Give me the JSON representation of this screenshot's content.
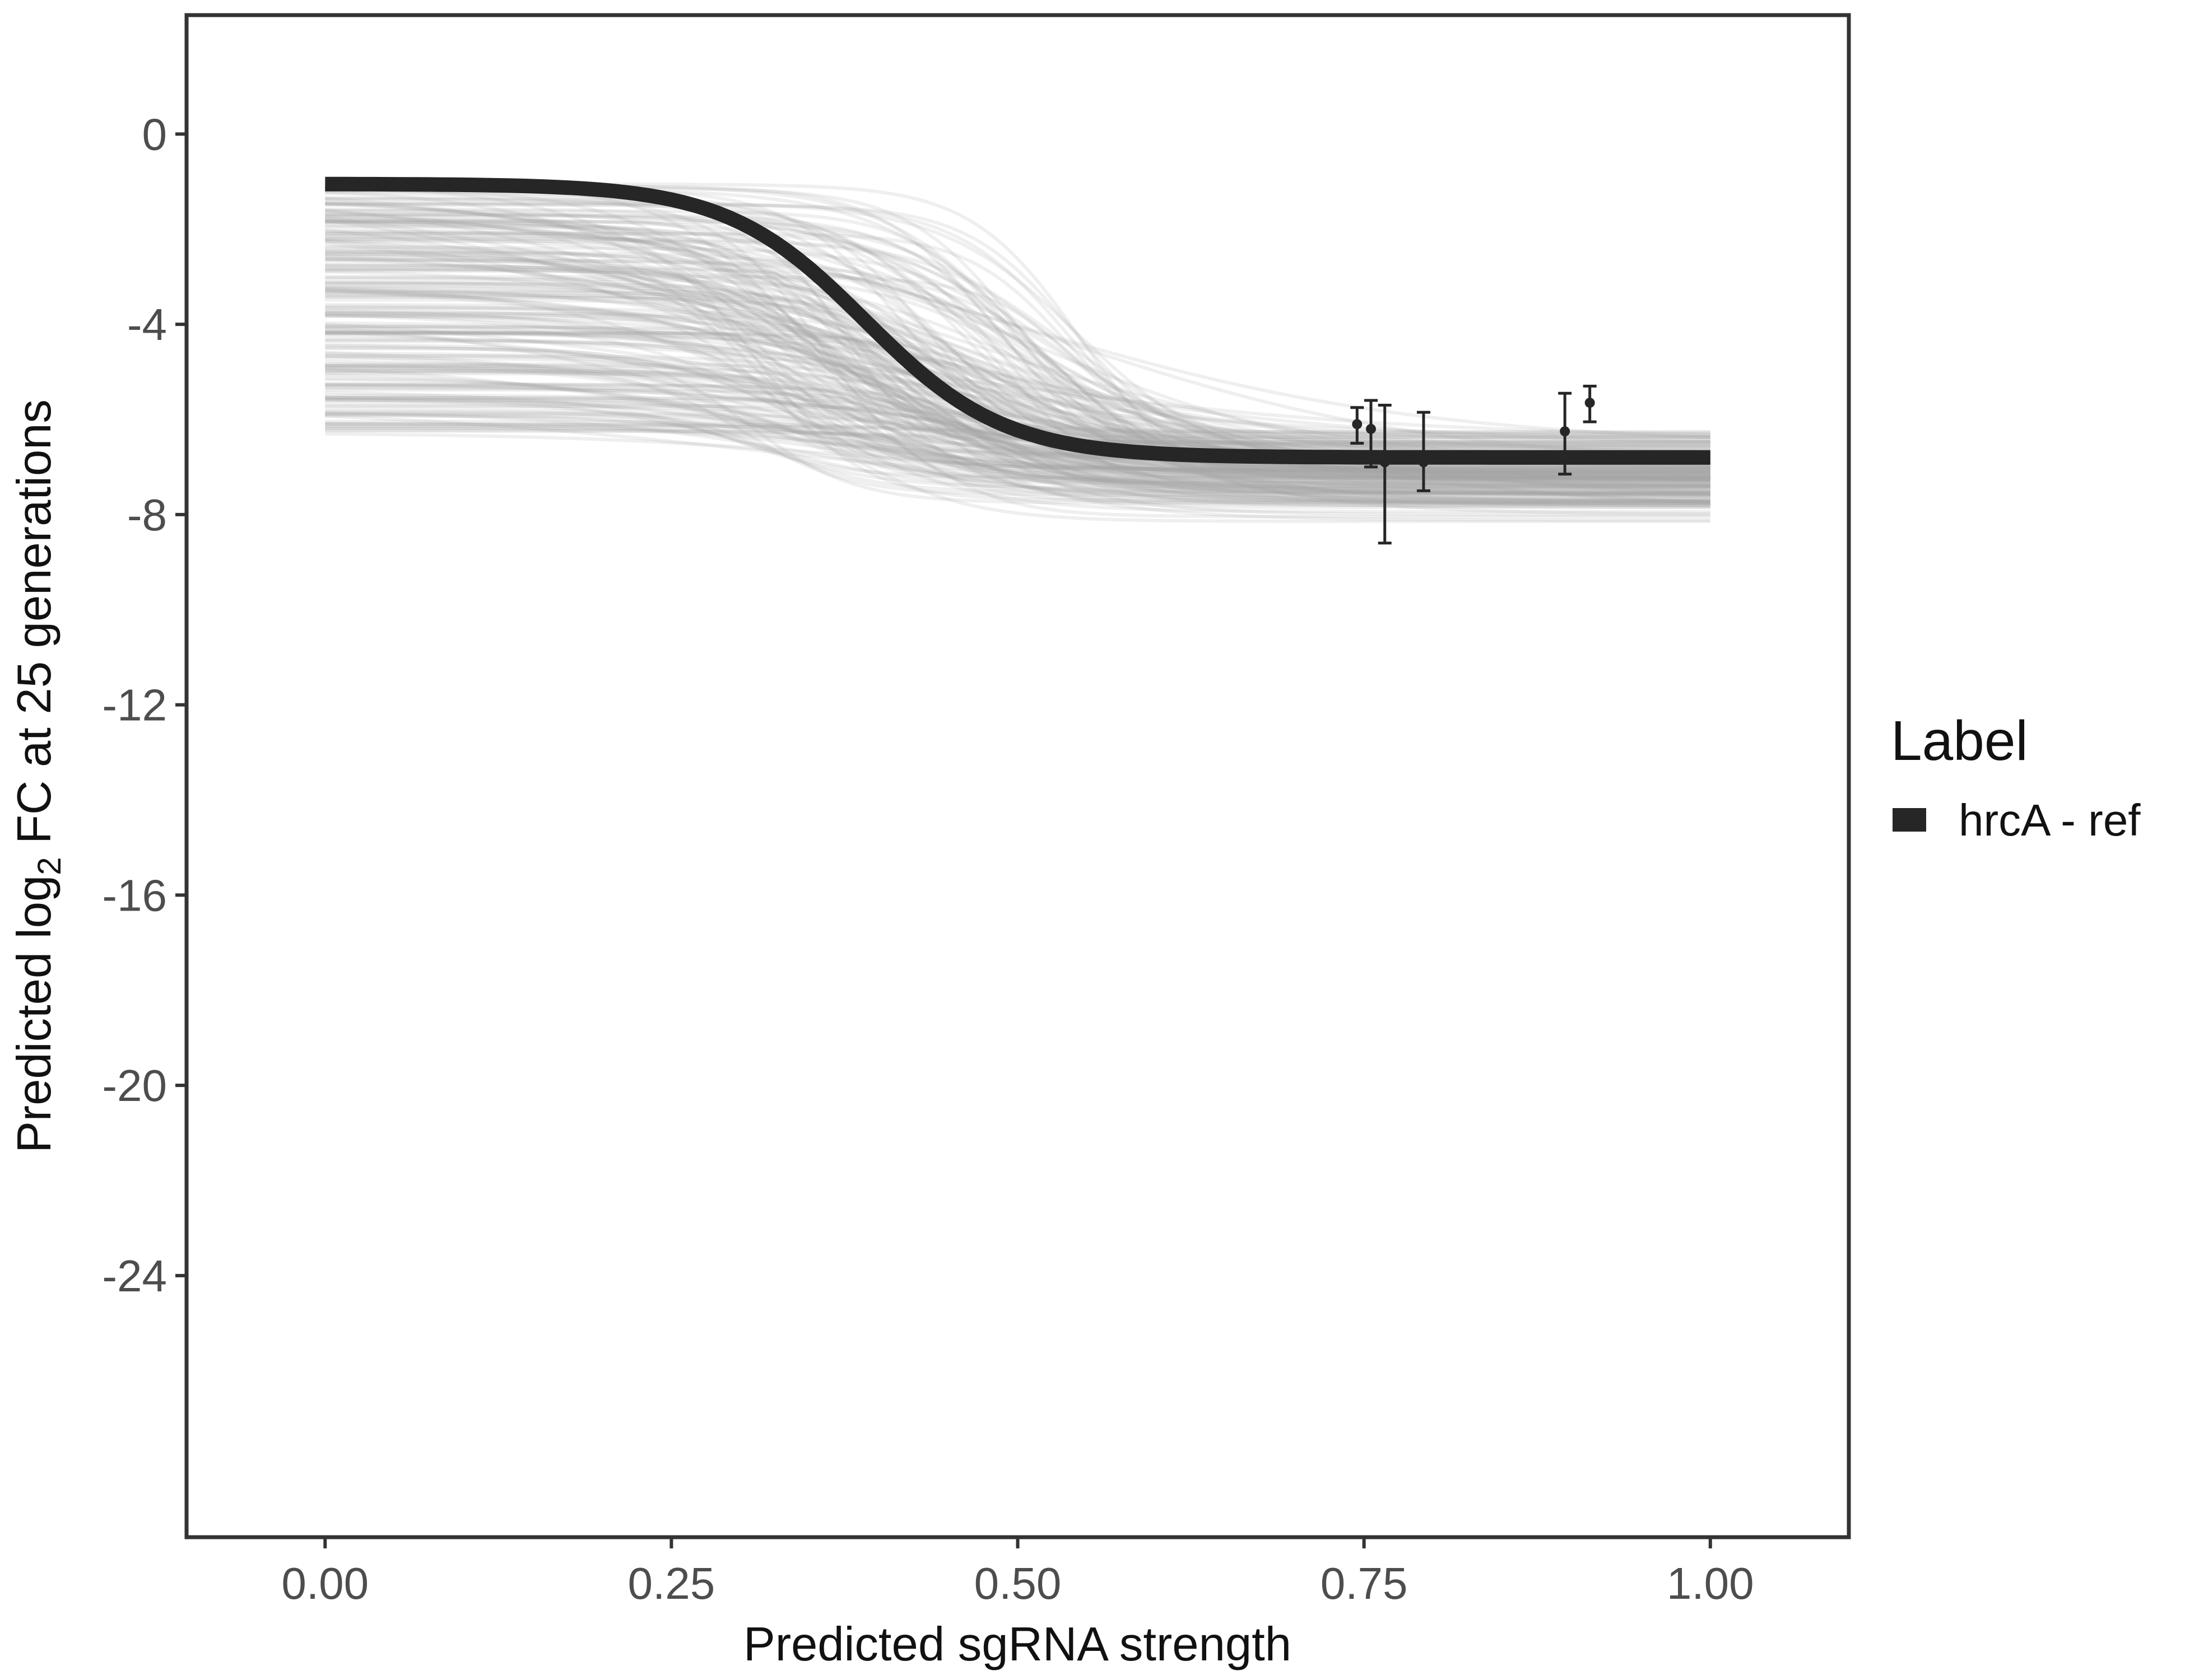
{
  "chart_data": {
    "type": "line",
    "xlabel": "Predicted sgRNA strength",
    "ylabel": {
      "prefix": "Predicted  log",
      "subscript": "2",
      "suffix": " FC at 25 generations"
    },
    "xlim": [
      -0.1,
      1.1
    ],
    "ylim": [
      -29.5,
      2.5
    ],
    "x_ticks": [
      0,
      0.25,
      0.5,
      0.75,
      1
    ],
    "x_tick_labels": [
      "0.00",
      "0.25",
      "0.50",
      "0.75",
      "1.00"
    ],
    "y_ticks": [
      0,
      -4,
      -8,
      -12,
      -16,
      -20,
      -24
    ],
    "y_tick_labels": [
      "0",
      "-4",
      "-8",
      "-12",
      "-16",
      "-20",
      "-24"
    ],
    "grid": false,
    "legend": {
      "title": "Label",
      "position": "right",
      "entries": [
        "hrcA - ref"
      ]
    },
    "colors": {
      "main_line": "#262626",
      "posterior_lines": "#a6a6a6",
      "points": "#262626",
      "axis_frame": "#333333"
    },
    "series": [
      {
        "name": "hrcA - ref",
        "model": "logistic",
        "params": {
          "upper": -1.05,
          "lower": -6.8,
          "midpoint": 0.39,
          "steepness": 20
        },
        "x": [
          0,
          0.05,
          0.1,
          0.15,
          0.2,
          0.25,
          0.3,
          0.35,
          0.4,
          0.45,
          0.5,
          0.55,
          0.6,
          0.65,
          0.7,
          0.75,
          0.8,
          0.85,
          0.9,
          0.95,
          1
        ],
        "y": [
          -1.08,
          -1.11,
          -1.18,
          -1.33,
          -1.66,
          -2.3,
          -3.33,
          -4.6,
          -5.68,
          -6.32,
          -6.6,
          -6.72,
          -6.77,
          -6.79,
          -6.8,
          -6.8,
          -6.8,
          -6.8,
          -6.8,
          -6.8,
          -6.8
        ]
      }
    ],
    "posterior_samples": {
      "description": "",
      "count": 220,
      "model": "logistic",
      "upper_range": [
        -6.3,
        -1.05
      ],
      "lower_range": [
        -8.5,
        -4.7
      ],
      "midpoint_range": [
        0.3,
        0.55
      ],
      "steepness_range": [
        6,
        30
      ]
    },
    "points": [
      {
        "x": 0.745,
        "y": -6.1,
        "ymin": -6.5,
        "ymax": -5.75
      },
      {
        "x": 0.755,
        "y": -6.2,
        "ymin": -7.0,
        "ymax": -5.6
      },
      {
        "x": 0.765,
        "y": -6.9,
        "ymin": -8.6,
        "ymax": -5.7
      },
      {
        "x": 0.793,
        "y": -6.9,
        "ymin": -7.5,
        "ymax": -5.85
      },
      {
        "x": 0.895,
        "y": -6.25,
        "ymin": -7.15,
        "ymax": -5.45
      },
      {
        "x": 0.913,
        "y": -5.65,
        "ymin": -6.05,
        "ymax": -5.3
      }
    ]
  }
}
